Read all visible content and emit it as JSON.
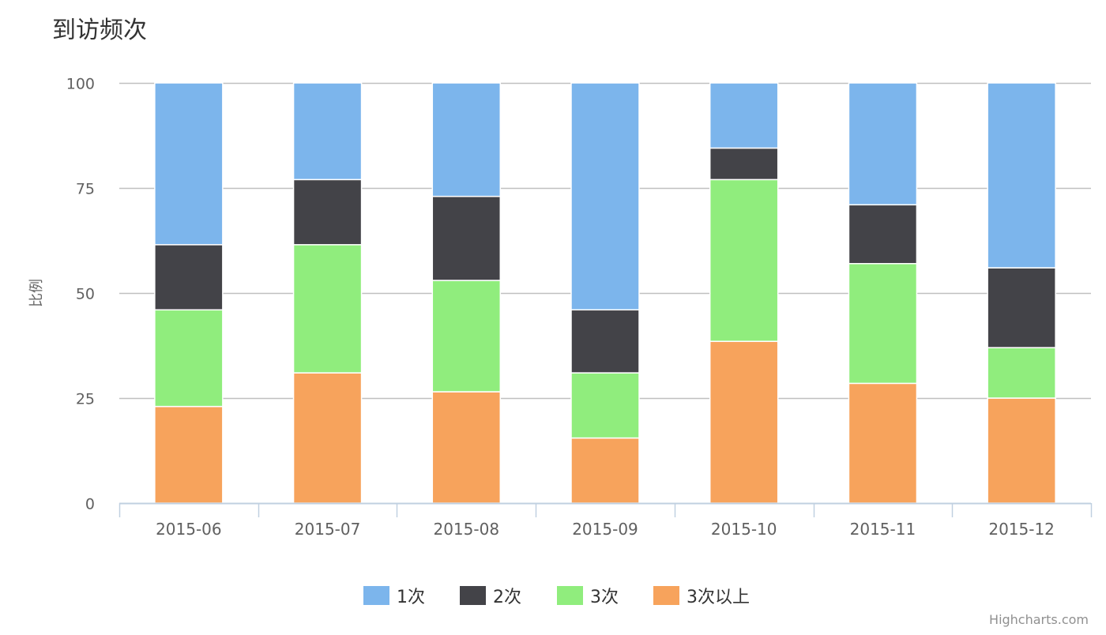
{
  "chart_data": {
    "type": "bar",
    "stacked": "percent",
    "title": "到访频次",
    "xlabel": "",
    "ylabel": "比例",
    "ylim": [
      0,
      100
    ],
    "yticks": [
      "0",
      "25",
      "50",
      "75",
      "100"
    ],
    "categories": [
      "2015-06",
      "2015-07",
      "2015-08",
      "2015-09",
      "2015-10",
      "2015-11",
      "2015-12"
    ],
    "series": [
      {
        "name": "1次",
        "color": "#7cb5ec",
        "values": [
          38.5,
          23.0,
          27.0,
          54.0,
          15.5,
          29.0,
          44.0
        ]
      },
      {
        "name": "2次",
        "color": "#434348",
        "values": [
          15.5,
          15.5,
          20.0,
          15.0,
          7.5,
          14.0,
          19.0
        ]
      },
      {
        "name": "3次",
        "color": "#90ed7d",
        "values": [
          23.0,
          30.5,
          26.5,
          15.5,
          38.5,
          28.5,
          12.0
        ]
      },
      {
        "name": "3次以上",
        "color": "#f7a35c",
        "values": [
          23.0,
          31.0,
          26.5,
          15.5,
          38.5,
          28.5,
          25.0
        ]
      }
    ],
    "grid": true,
    "legend": "bottom-center"
  },
  "credits": "Highcharts.com",
  "colors": {
    "grid": "#c0c0c0",
    "axis": "#c0d0e0",
    "label": "#606060",
    "title": "#333333"
  }
}
